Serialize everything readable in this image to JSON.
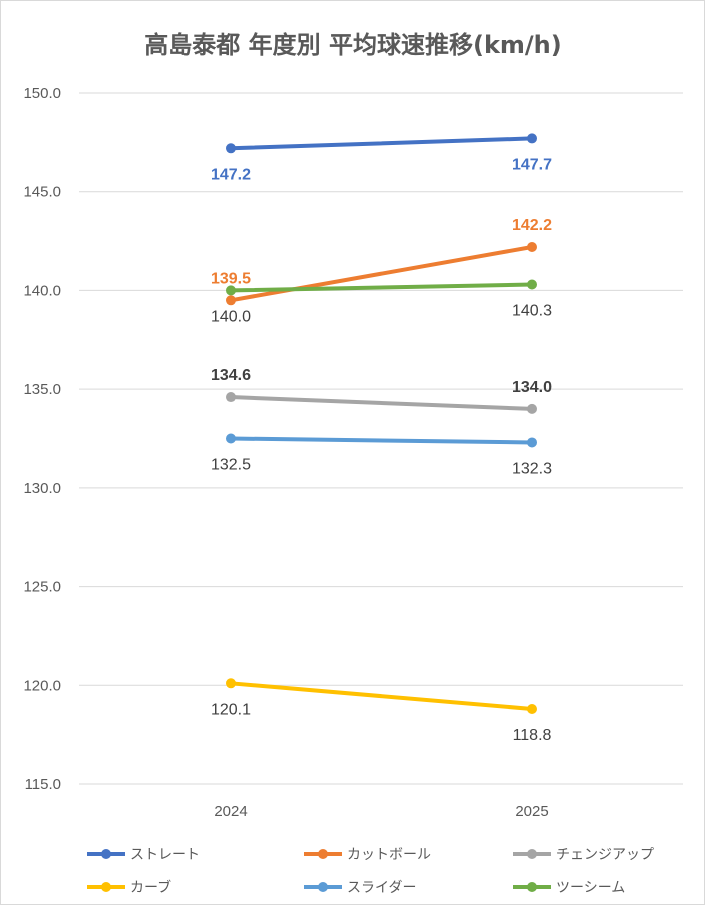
{
  "chart_data": {
    "type": "line",
    "title": "高島泰都 年度別 平均球速推移(km/h)",
    "categories": [
      "2024",
      "2025"
    ],
    "ylim": [
      115.0,
      150.0
    ],
    "yticks": [
      "150.0",
      "145.0",
      "140.0",
      "135.0",
      "130.0",
      "125.0",
      "120.0",
      "115.0"
    ],
    "grid": true,
    "legend_position": "bottom",
    "series": [
      {
        "name": "ストレート",
        "values": [
          147.2,
          147.7
        ],
        "labels": [
          "147.2",
          "147.7"
        ],
        "color": "#4472C4",
        "label_color": "#4472C4",
        "label_bold": true,
        "label_pos": [
          "below",
          "below"
        ]
      },
      {
        "name": "カットボール",
        "values": [
          139.5,
          142.2
        ],
        "labels": [
          "139.5",
          "142.2"
        ],
        "color": "#ED7D31",
        "label_color": "#ED7D31",
        "label_bold": true,
        "label_pos": [
          "above",
          "above"
        ]
      },
      {
        "name": "チェンジアップ",
        "values": [
          134.6,
          134.0
        ],
        "labels": [
          "134.6",
          "134.0"
        ],
        "color": "#A5A5A5",
        "label_color": "#404040",
        "label_bold": true,
        "label_pos": [
          "above",
          "above"
        ]
      },
      {
        "name": "カーブ",
        "values": [
          120.1,
          118.8
        ],
        "labels": [
          "120.1",
          "118.8"
        ],
        "color": "#FFC000",
        "label_color": "#404040",
        "label_bold": false,
        "label_pos": [
          "below",
          "below"
        ]
      },
      {
        "name": "スライダー",
        "values": [
          132.5,
          132.3
        ],
        "labels": [
          "132.5",
          "132.3"
        ],
        "color": "#5B9BD5",
        "label_color": "#404040",
        "label_bold": false,
        "label_pos": [
          "below",
          "below"
        ]
      },
      {
        "name": "ツーシーム",
        "values": [
          140.0,
          140.3
        ],
        "labels": [
          "140.0",
          "140.3"
        ],
        "color": "#70AD47",
        "label_color": "#404040",
        "label_bold": false,
        "label_pos": [
          "below",
          "below"
        ]
      }
    ]
  }
}
